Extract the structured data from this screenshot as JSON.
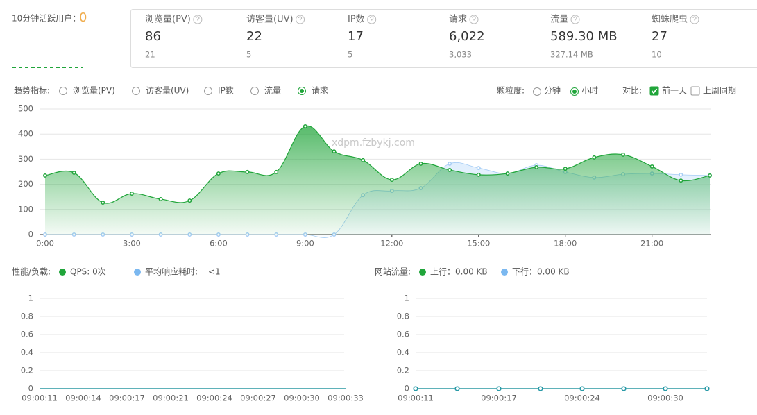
{
  "header": {
    "active_label": "10分钟活跃用户：",
    "active_value": "0"
  },
  "stats": [
    {
      "label": "浏览量(PV)",
      "value": "86",
      "sub": "21"
    },
    {
      "label": "访客量(UV)",
      "value": "22",
      "sub": "5"
    },
    {
      "label": "IP数",
      "value": "17",
      "sub": "5"
    },
    {
      "label": "请求",
      "value": "6,022",
      "sub": "3,033"
    },
    {
      "label": "流量",
      "value": "589.30 MB",
      "sub": "327.14 MB"
    },
    {
      "label": "蜘蛛爬虫",
      "value": "27",
      "sub": "10"
    }
  ],
  "controls": {
    "trend_label": "趋势指标:",
    "trend_options": [
      "浏览量(PV)",
      "访客量(UV)",
      "IP数",
      "流量",
      "请求"
    ],
    "trend_selected": 4,
    "granularity_label": "颗粒度:",
    "granularity_options": [
      "分钟",
      "小时"
    ],
    "granularity_selected": 1,
    "compare_label": "对比:",
    "compare_options": [
      {
        "label": "前一天",
        "checked": true
      },
      {
        "label": "上周同期",
        "checked": false
      }
    ]
  },
  "watermark": "xdpm.fzbykj.com",
  "chart_data": [
    {
      "type": "area",
      "x": [
        0,
        1,
        2,
        3,
        4,
        5,
        6,
        7,
        8,
        9,
        10,
        11,
        12,
        13,
        14,
        15,
        16,
        17,
        18,
        19,
        20,
        21,
        22,
        23
      ],
      "xlim": [
        0,
        23
      ],
      "xticks": [
        {
          "value": 0,
          "label": "0:00"
        },
        {
          "value": 3,
          "label": "3:00"
        },
        {
          "value": 6,
          "label": "6:00"
        },
        {
          "value": 9,
          "label": "9:00"
        },
        {
          "value": 12,
          "label": "12:00"
        },
        {
          "value": 15,
          "label": "15:00"
        },
        {
          "value": 18,
          "label": "18:00"
        },
        {
          "value": 21,
          "label": "21:00"
        }
      ],
      "ylim": [
        0,
        500
      ],
      "yticks": [
        0,
        100,
        200,
        300,
        400,
        500
      ],
      "grid": true,
      "series": [
        {
          "color": "#20a53a",
          "values": [
            235,
            246,
            127,
            163,
            141,
            135,
            243,
            249,
            249,
            431,
            331,
            296,
            218,
            282,
            257,
            238,
            243,
            268,
            262,
            307,
            318,
            271,
            215,
            235
          ]
        },
        {
          "color": "#a6cdf5",
          "values": [
            0,
            0,
            0,
            0,
            0,
            0,
            0,
            0,
            0,
            0,
            0,
            157,
            174,
            185,
            282,
            265,
            243,
            276,
            249,
            227,
            240,
            243,
            238,
            235
          ]
        }
      ]
    },
    {
      "type": "line",
      "title": "性能/负载:",
      "categories": [
        "09:00:11",
        "09:00:14",
        "09:00:17",
        "09:00:21",
        "09:00:24",
        "09:00:27",
        "09:00:30",
        "09:00:33"
      ],
      "ylim": [
        0,
        1
      ],
      "yticks": [
        0,
        0.2,
        0.4,
        0.6,
        0.8,
        1
      ],
      "grid": true,
      "markers": false,
      "series": [
        {
          "name": "QPS: 0次",
          "color": "#20a53a",
          "values": [
            0,
            0,
            0,
            0,
            0,
            0,
            0,
            0
          ]
        },
        {
          "name": "平均响应耗时:",
          "value_text": "<1",
          "color": "#7bb8f0",
          "values": [
            0,
            0,
            0,
            0,
            0,
            0,
            0,
            0
          ]
        }
      ]
    },
    {
      "type": "line",
      "title": "网站流量:",
      "categories": [
        "09:00:11",
        null,
        "09:00:17",
        null,
        "09:00:24",
        null,
        "09:00:30",
        null
      ],
      "ylim": [
        0,
        1
      ],
      "yticks": [
        0,
        0.2,
        0.4,
        0.6,
        0.8,
        1
      ],
      "grid": true,
      "markers": true,
      "series": [
        {
          "name": "上行：0.00 KB",
          "color": "#20a53a",
          "values": [
            0,
            0,
            0,
            0,
            0,
            0,
            0,
            0
          ]
        },
        {
          "name": "下行：0.00 KB",
          "color": "#7bb8f0",
          "values": [
            0,
            0,
            0,
            0,
            0,
            0,
            0,
            0
          ]
        }
      ]
    }
  ]
}
